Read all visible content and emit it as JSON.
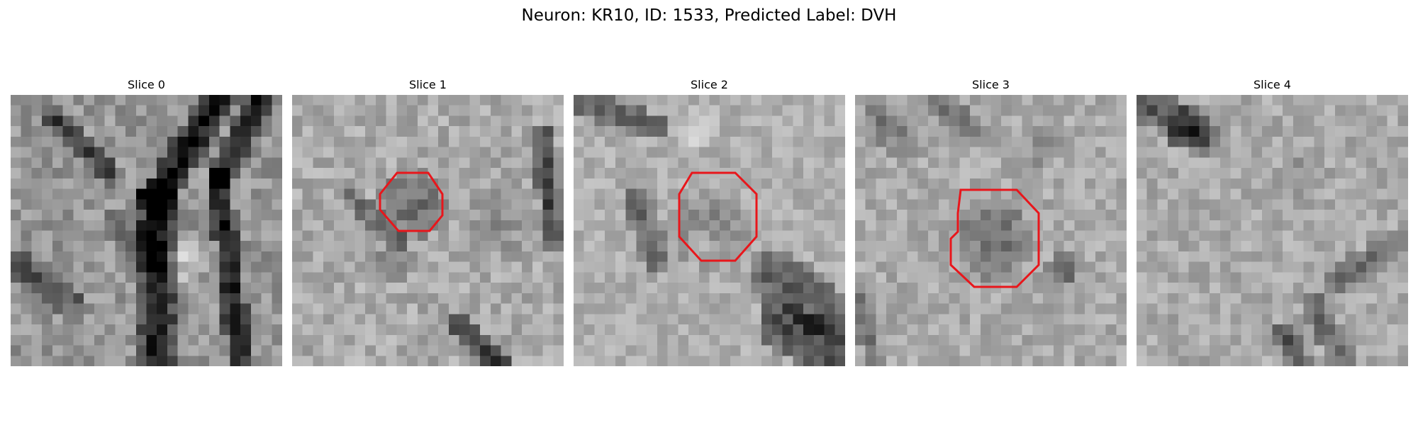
{
  "figure": {
    "title": "Neuron: KR10, ID: 1533, Predicted Label: DVH"
  },
  "panels": [
    {
      "label": "Slice 0",
      "has_roi": false
    },
    {
      "label": "Slice 1",
      "has_roi": true
    },
    {
      "label": "Slice 2",
      "has_roi": true
    },
    {
      "label": "Slice 3",
      "has_roi": true
    },
    {
      "label": "Slice 4",
      "has_roi": false
    }
  ],
  "style": {
    "roi_color": "#e8161b",
    "colormap": "grayscale"
  }
}
